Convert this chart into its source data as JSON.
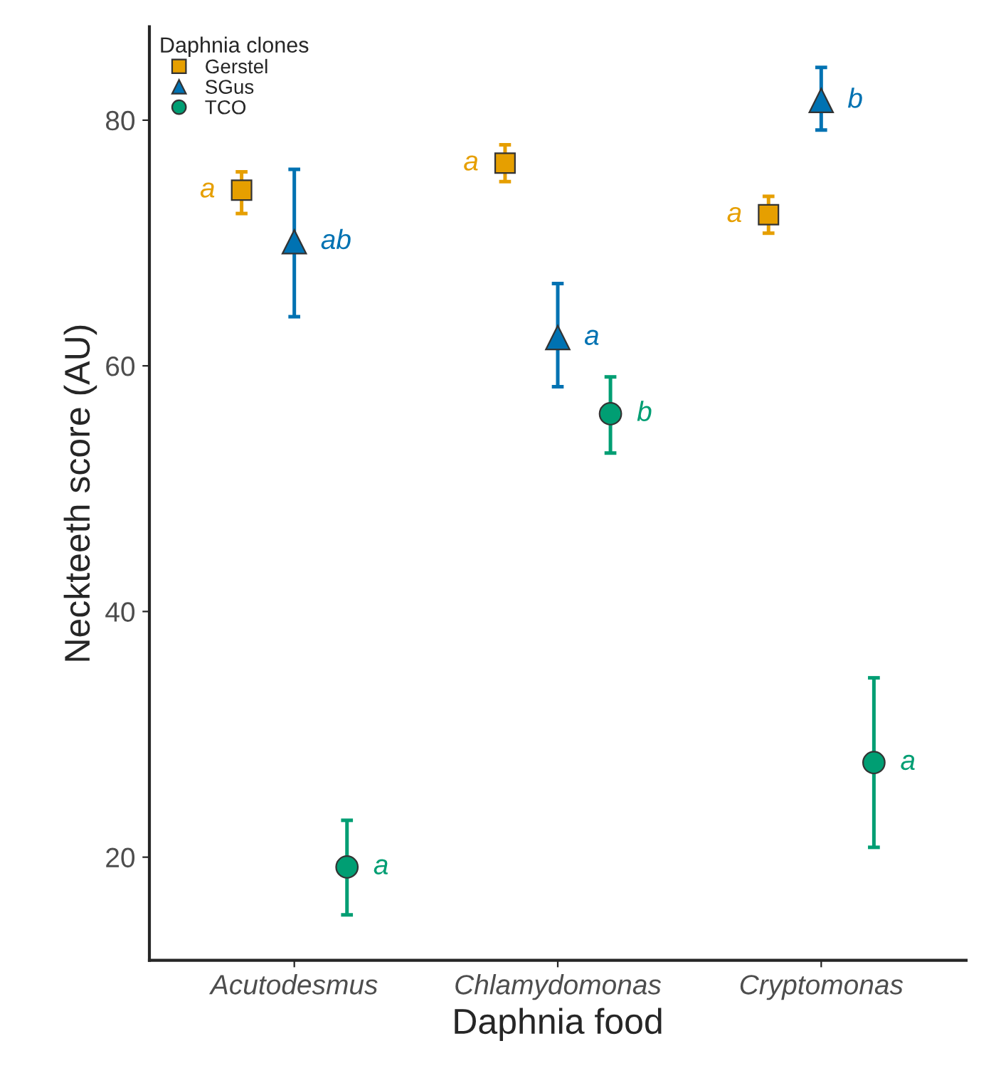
{
  "chart_data": {
    "type": "scatter",
    "xlabel": "Daphnia food",
    "ylabel": "Neckteeth score (AU)",
    "legend_title": "Daphnia clones",
    "categories": [
      "Acutodesmus",
      "Chlamydomonas",
      "Cryptomonas"
    ],
    "series": [
      {
        "name": "Gerstel",
        "color": "#e69f00",
        "marker": "square",
        "values": [
          74.3,
          76.5,
          72.3
        ],
        "errors": [
          [
            72.4,
            75.8
          ],
          [
            75.0,
            78.0
          ],
          [
            70.8,
            73.8
          ]
        ],
        "value_labels": [
          "a",
          "a",
          "a"
        ]
      },
      {
        "name": "SGus",
        "color": "#0072b2",
        "marker": "triangle",
        "values": [
          70.1,
          62.3,
          81.6
        ],
        "errors": [
          [
            64.0,
            76.0
          ],
          [
            58.3,
            66.7
          ],
          [
            79.2,
            84.3
          ]
        ],
        "value_labels": [
          "ab",
          "a",
          "b"
        ]
      },
      {
        "name": "TCO",
        "color": "#009e73",
        "marker": "circle",
        "values": [
          19.2,
          56.1,
          27.7
        ],
        "errors": [
          [
            15.3,
            23.0
          ],
          [
            52.9,
            59.1
          ],
          [
            20.8,
            34.6
          ]
        ],
        "value_labels": [
          "a",
          "b",
          "a"
        ]
      }
    ],
    "ylim": [
      11.6,
      87.6
    ],
    "yticks": [
      20,
      40,
      60,
      80
    ],
    "grid": false,
    "legend": "top left"
  }
}
